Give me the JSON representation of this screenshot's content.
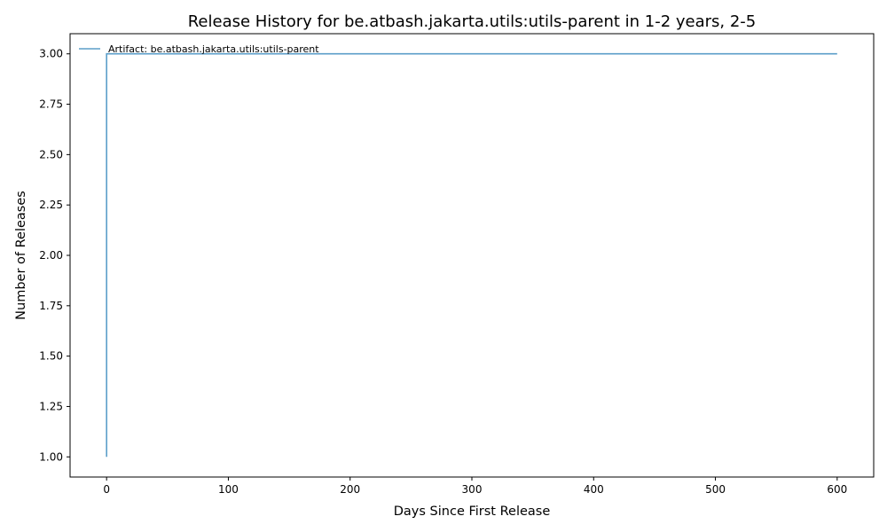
{
  "chart_data": {
    "type": "line",
    "title": "Release History for be.atbash.jakarta.utils:utils-parent in 1-2 years, 2-5",
    "xlabel": "Days Since First Release",
    "ylabel": "Number of Releases",
    "xlim": [
      -30,
      630
    ],
    "ylim": [
      0.9,
      3.1
    ],
    "xticks": [
      0,
      100,
      200,
      300,
      400,
      500,
      600
    ],
    "yticks": [
      "1.00",
      "1.25",
      "1.50",
      "1.75",
      "2.00",
      "2.25",
      "2.50",
      "2.75",
      "3.00"
    ],
    "legend_position": "top-left",
    "grid": false,
    "series": [
      {
        "name": "Artifact: be.atbash.jakarta.utils:utils-parent",
        "color": "#5b9ec9",
        "step": "post",
        "x": [
          0,
          0,
          600
        ],
        "y": [
          1,
          3,
          3
        ]
      }
    ]
  }
}
